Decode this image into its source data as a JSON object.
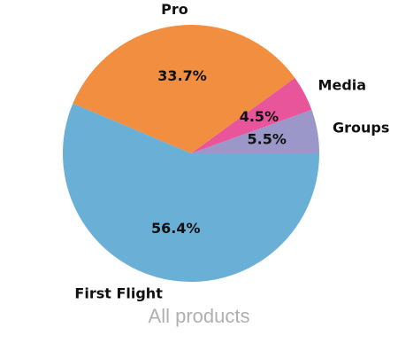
{
  "chart_data": {
    "type": "pie",
    "title": "All products",
    "start_angle_deg": 0,
    "direction": "counterclockwise",
    "slices": [
      {
        "label": "Groups",
        "value": 5.5,
        "pct_label": "5.5%",
        "color": "#9b97c9"
      },
      {
        "label": "Media",
        "value": 4.5,
        "pct_label": "4.5%",
        "color": "#e8559b"
      },
      {
        "label": "Pro",
        "value": 33.7,
        "pct_label": "33.7%",
        "color": "#f28e3f"
      },
      {
        "label": "First Flight",
        "value": 56.4,
        "pct_label": "56.4%",
        "color": "#6aafd6"
      }
    ]
  }
}
